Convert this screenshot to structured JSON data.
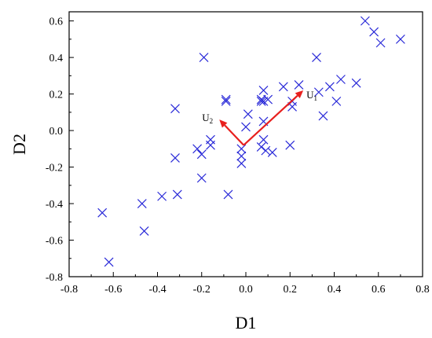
{
  "chart_data": {
    "type": "scatter",
    "xlabel": "D1",
    "ylabel": "D2",
    "xlim": [
      -0.8,
      0.8
    ],
    "ylim": [
      -0.8,
      0.65
    ],
    "xticks": [
      -0.8,
      -0.6,
      -0.4,
      -0.2,
      0.0,
      0.2,
      0.4,
      0.6,
      0.8
    ],
    "yticks": [
      -0.8,
      -0.6,
      -0.4,
      -0.2,
      0.0,
      0.2,
      0.4,
      0.6
    ],
    "xtick_labels": [
      "-0.8",
      "-0.6",
      "-0.4",
      "-0.2",
      "0.0",
      "0.2",
      "0.4",
      "0.6",
      "0.8"
    ],
    "ytick_labels": [
      "-0.8",
      "-0.6",
      "-0.4",
      "-0.2",
      "0.0",
      "0.2",
      "0.4",
      "0.6"
    ],
    "grid": false,
    "marker": "x",
    "marker_color": "#2a2ad8",
    "points": [
      [
        -0.65,
        -0.45
      ],
      [
        -0.62,
        -0.72
      ],
      [
        -0.47,
        -0.4
      ],
      [
        -0.46,
        -0.55
      ],
      [
        -0.38,
        -0.36
      ],
      [
        -0.32,
        0.12
      ],
      [
        -0.32,
        -0.15
      ],
      [
        -0.31,
        -0.35
      ],
      [
        -0.22,
        -0.1
      ],
      [
        -0.2,
        -0.13
      ],
      [
        -0.2,
        -0.26
      ],
      [
        -0.19,
        0.4
      ],
      [
        -0.16,
        -0.05
      ],
      [
        -0.16,
        -0.08
      ],
      [
        -0.09,
        0.17
      ],
      [
        -0.09,
        0.16
      ],
      [
        -0.08,
        -0.35
      ],
      [
        -0.02,
        -0.1
      ],
      [
        -0.02,
        -0.14
      ],
      [
        -0.02,
        -0.18
      ],
      [
        0.0,
        0.02
      ],
      [
        0.01,
        0.09
      ],
      [
        0.07,
        0.16
      ],
      [
        0.07,
        0.17
      ],
      [
        0.07,
        -0.09
      ],
      [
        0.08,
        0.22
      ],
      [
        0.08,
        0.16
      ],
      [
        0.08,
        -0.05
      ],
      [
        0.08,
        0.05
      ],
      [
        0.09,
        -0.11
      ],
      [
        0.1,
        0.17
      ],
      [
        0.12,
        -0.12
      ],
      [
        0.17,
        0.24
      ],
      [
        0.2,
        -0.08
      ],
      [
        0.21,
        0.16
      ],
      [
        0.21,
        0.13
      ],
      [
        0.24,
        0.25
      ],
      [
        0.32,
        0.4
      ],
      [
        0.33,
        0.21
      ],
      [
        0.35,
        0.08
      ],
      [
        0.38,
        0.24
      ],
      [
        0.41,
        0.16
      ],
      [
        0.43,
        0.28
      ],
      [
        0.5,
        0.26
      ],
      [
        0.54,
        0.6
      ],
      [
        0.58,
        0.54
      ],
      [
        0.61,
        0.48
      ],
      [
        0.7,
        0.5
      ]
    ],
    "vectors": [
      {
        "label": "U",
        "sub": "1",
        "from": [
          -0.01,
          -0.08
        ],
        "to": [
          0.26,
          0.22
        ],
        "color": "#e8201e"
      },
      {
        "label": "U",
        "sub": "2",
        "from": [
          -0.01,
          -0.08
        ],
        "to": [
          -0.12,
          0.06
        ],
        "color": "#e8201e"
      }
    ]
  }
}
